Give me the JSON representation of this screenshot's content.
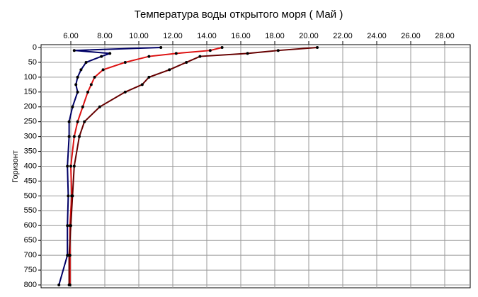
{
  "chart_data": {
    "type": "line",
    "title": "Температура воды открытого моря     ( Май )",
    "y_label": "Горизонт",
    "xlim": [
      4.25,
      29.5
    ],
    "ylim": [
      0,
      800
    ],
    "y_inverted": true,
    "grid": true,
    "xticks": [
      {
        "value": 6,
        "label": "6.00"
      },
      {
        "value": 8,
        "label": "8.00"
      },
      {
        "value": 10,
        "label": "10.00"
      },
      {
        "value": 12,
        "label": "12.00"
      },
      {
        "value": 14,
        "label": "14.00"
      },
      {
        "value": 16,
        "label": "16.00"
      },
      {
        "value": 18,
        "label": "18.00"
      },
      {
        "value": 20,
        "label": "20.00"
      },
      {
        "value": 22,
        "label": "22.00"
      },
      {
        "value": 24,
        "label": "24.00"
      },
      {
        "value": 26,
        "label": "26.00"
      },
      {
        "value": 28,
        "label": "28.00"
      }
    ],
    "yticks": [
      0,
      50,
      100,
      150,
      200,
      250,
      300,
      350,
      400,
      450,
      500,
      550,
      600,
      650,
      700,
      750,
      800
    ],
    "series": [
      {
        "color": "#000066",
        "x": [
          11.3,
          6.2,
          8.3,
          7.8,
          6.9,
          6.6,
          6.4,
          6.3,
          6.4,
          6.1,
          5.9,
          5.9,
          5.8,
          5.85,
          5.8,
          5.8,
          5.3
        ],
        "values": [
          0,
          10,
          20,
          30,
          50,
          75,
          100,
          125,
          150,
          200,
          250,
          300,
          400,
          500,
          600,
          700,
          800
        ]
      },
      {
        "color": "#dd1111",
        "x": [
          14.9,
          14.2,
          12.2,
          10.6,
          9.2,
          7.9,
          7.4,
          7.2,
          7.0,
          6.7,
          6.4,
          6.2,
          6.0,
          6.05,
          5.95,
          5.95,
          5.95
        ],
        "values": [
          0,
          10,
          20,
          30,
          50,
          75,
          100,
          125,
          150,
          200,
          250,
          300,
          400,
          500,
          600,
          700,
          800
        ]
      },
      {
        "color": "#660000",
        "x": [
          20.5,
          18.2,
          16.4,
          13.6,
          12.8,
          11.8,
          10.6,
          10.2,
          9.2,
          7.7,
          6.8,
          6.5,
          6.2,
          6.1,
          6.0,
          5.9,
          5.9
        ],
        "values": [
          0,
          10,
          20,
          30,
          50,
          75,
          100,
          125,
          150,
          200,
          250,
          300,
          400,
          500,
          600,
          700,
          800
        ]
      }
    ]
  }
}
